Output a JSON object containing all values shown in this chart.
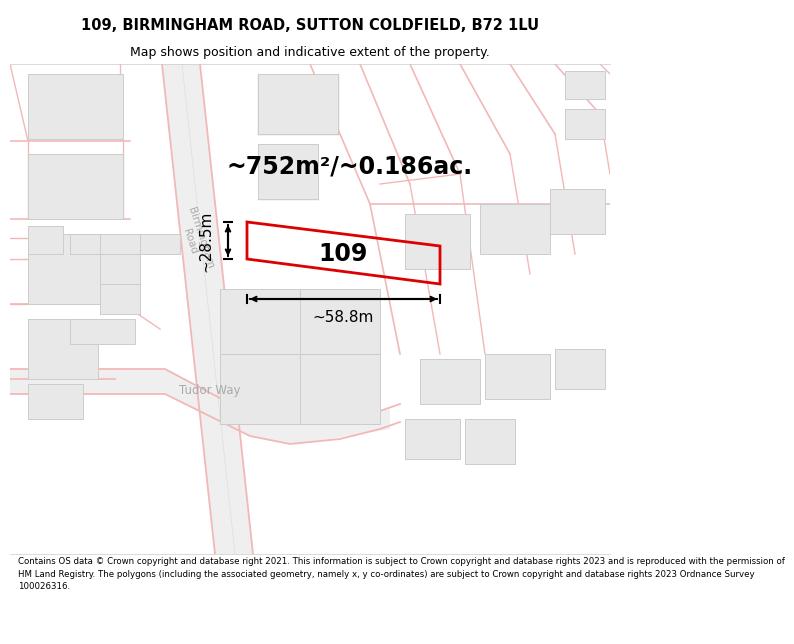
{
  "title": "109, BIRMINGHAM ROAD, SUTTON COLDFIELD, B72 1LU",
  "subtitle": "Map shows position and indicative extent of the property.",
  "footer": "Contains OS data © Crown copyright and database right 2021. This information is subject to Crown copyright and database rights 2023 and is reproduced with the permission of\nHM Land Registry. The polygons (including the associated geometry, namely x, y co-ordinates) are subject to Crown copyright and database rights 2023 Ordnance Survey\n100026316.",
  "map_bg": "#ffffff",
  "title_bg": "#ffffff",
  "footer_bg": "#ffffff",
  "road_color": "#f2b8b8",
  "building_color": "#e8e8e8",
  "building_edge": "#cccccc",
  "property_color": "#dd0000",
  "area_text": "~752m²/~0.186ac.",
  "width_text": "~58.8m",
  "height_text": "~28.5m",
  "label_109": "109",
  "road_label": "Birmingham\nRoad",
  "tudor_label": "Tudor Way",
  "title_fontsize": 10.5,
  "subtitle_fontsize": 9.0,
  "footer_fontsize": 6.2,
  "area_fontsize": 17,
  "dim_fontsize": 11,
  "prop_label_fontsize": 17,
  "road_label_fontsize": 7.5,
  "tudor_fontsize": 8.5
}
